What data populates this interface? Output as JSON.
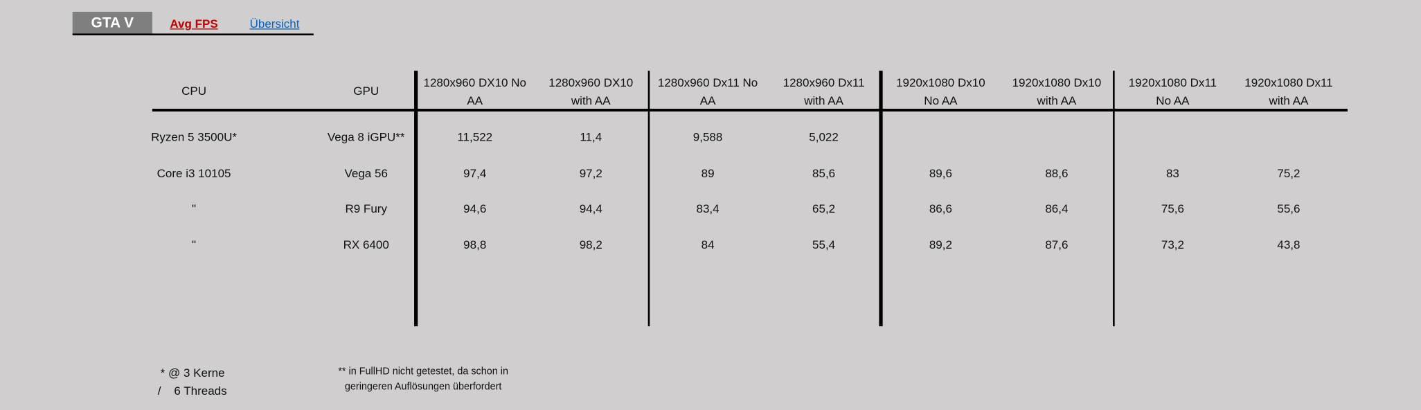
{
  "tabs": {
    "active": "GTA V",
    "links": [
      "Avg FPS",
      "Übersicht"
    ]
  },
  "table": {
    "columns": [
      [
        "CPU"
      ],
      [
        "GPU"
      ],
      [
        "1280x960 DX10 No",
        "AA"
      ],
      [
        "1280x960 DX10",
        "with AA"
      ],
      [
        "1280x960 Dx11 No",
        "AA"
      ],
      [
        "1280x960 Dx11",
        "with AA"
      ],
      [
        "1920x1080 Dx10",
        "No AA"
      ],
      [
        "1920x1080 Dx10",
        "with AA"
      ],
      [
        "1920x1080 Dx11",
        "No AA"
      ],
      [
        "1920x1080 Dx11",
        "with AA"
      ]
    ],
    "rows": [
      [
        "Ryzen 5 3500U*",
        "Vega 8 iGPU**",
        "11,522",
        "11,4",
        "9,588",
        "5,022",
        null,
        null,
        null,
        null
      ],
      [
        "Core i3 10105",
        "Vega 56",
        "97,4",
        "97,2",
        "89",
        "85,6",
        "89,6",
        "88,6",
        "83",
        "75,2"
      ],
      [
        "\"",
        "R9 Fury",
        "94,6",
        "94,4",
        "83,4",
        "65,2",
        "86,6",
        "86,4",
        "75,6",
        "55,6"
      ],
      [
        "\"",
        "RX 6400",
        "98,8",
        "98,2",
        "84",
        "55,4",
        "89,2",
        "87,6",
        "73,2",
        "43,8"
      ]
    ]
  },
  "notes": {
    "cpu": [
      "* @ 3 Kerne",
      "/    6 Threads"
    ],
    "gpu": [
      "** in FullHD nicht getestet, da schon in",
      "geringeren Auflösungen überfordert"
    ]
  }
}
